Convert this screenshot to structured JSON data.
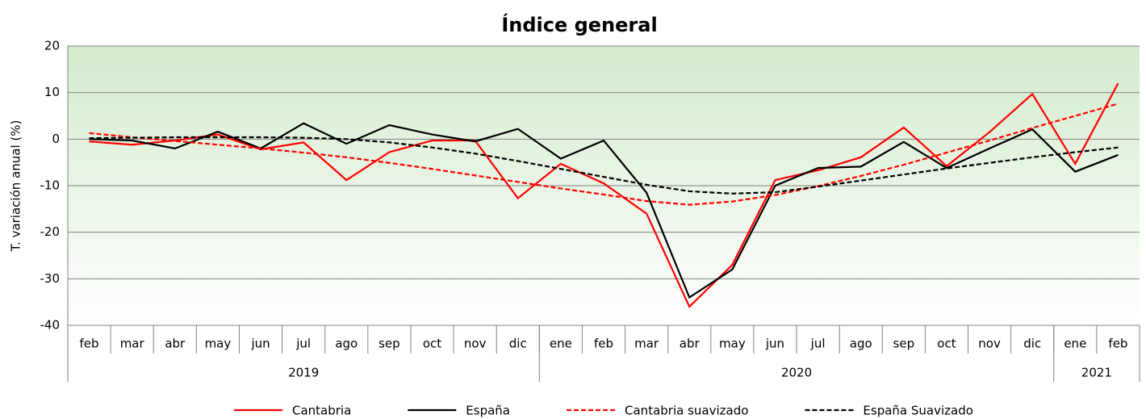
{
  "chart_data": {
    "type": "line",
    "title": "Índice general",
    "y_label": "T. variación anual (%)",
    "categories": [
      "feb",
      "mar",
      "abr",
      "may",
      "jun",
      "jul",
      "ago",
      "sep",
      "oct",
      "nov",
      "dic",
      "ene",
      "feb",
      "mar",
      "abr",
      "may",
      "jun",
      "jul",
      "ago",
      "sep",
      "oct",
      "nov",
      "dic",
      "ene",
      "feb"
    ],
    "years": [
      "2019",
      null,
      null,
      null,
      null,
      null,
      null,
      null,
      null,
      null,
      null,
      "2020",
      null,
      null,
      null,
      null,
      null,
      null,
      null,
      null,
      null,
      null,
      null,
      "2021",
      null
    ],
    "ylim": [
      -40,
      20
    ],
    "yticks": [
      -40,
      -30,
      -20,
      -10,
      0,
      10,
      20
    ],
    "grid": true,
    "legend": "bottom",
    "series": [
      {
        "name": "Cantabria",
        "color": "#ff0000",
        "dashed": false,
        "values": [
          -0.5,
          -1.2,
          -0.3,
          1.0,
          -2.2,
          -0.7,
          -8.8,
          -2.8,
          -0.3,
          -0.3,
          -12.7,
          -5.3,
          -9.5,
          -16,
          -36,
          -27,
          -8.8,
          -6.7,
          -3.9,
          2.5,
          -5.8,
          1.5,
          9.7,
          -5.3,
          12
        ]
      },
      {
        "name": "España",
        "color": "#000000",
        "dashed": false,
        "values": [
          0,
          -0.3,
          -2,
          1.6,
          -2,
          3.4,
          -1,
          3,
          1,
          -0.5,
          2.2,
          -4.2,
          -0.3,
          -11.5,
          -34,
          -28,
          -10,
          -6.2,
          -5.9,
          -0.6,
          -6.2,
          -2,
          2.1,
          -7,
          -3.4
        ]
      },
      {
        "name": "Cantabria suavizado",
        "color": "#ff0000",
        "dashed": true,
        "values": [
          1.3,
          0.4,
          -0.4,
          -1.2,
          -2.0,
          -2.9,
          -3.9,
          -5.1,
          -6.4,
          -7.8,
          -9.2,
          -10.6,
          -11.9,
          -13.3,
          -14.1,
          -13.4,
          -12,
          -10.1,
          -7.9,
          -5.5,
          -2.9,
          -0.3,
          2.4,
          5,
          7.6
        ]
      },
      {
        "name": "España Suavizado",
        "color": "#000000",
        "dashed": true,
        "values": [
          0.2,
          0.3,
          0.4,
          0.4,
          0.4,
          0.3,
          0,
          -0.7,
          -1.8,
          -3.1,
          -4.7,
          -6.4,
          -8.1,
          -9.8,
          -11.2,
          -11.7,
          -11.4,
          -10.2,
          -8.9,
          -7.6,
          -6.3,
          -5.1,
          -3.9,
          -2.8,
          -1.8
        ]
      }
    ]
  }
}
